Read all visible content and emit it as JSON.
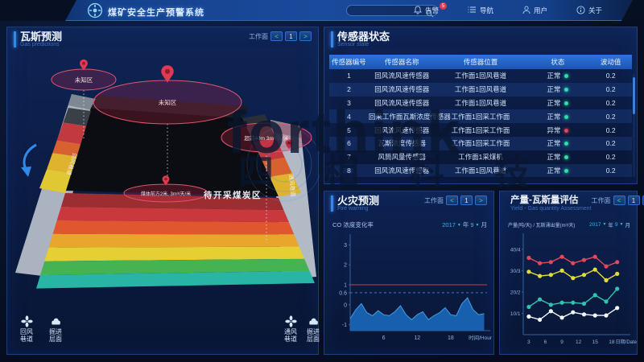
{
  "header": {
    "title": "煤矿安全生产预警系统",
    "search": {
      "placeholder": "",
      "icon": "search-icon"
    },
    "nav": [
      {
        "id": "alarm",
        "icon": "bell-icon",
        "label": "告警",
        "badge": "5"
      },
      {
        "id": "navigate",
        "icon": "list-icon",
        "label": "导航",
        "badge": ""
      },
      {
        "id": "user",
        "icon": "user-icon",
        "label": "用户",
        "badge": ""
      },
      {
        "id": "about",
        "icon": "info-icon",
        "label": "关于",
        "badge": ""
      }
    ]
  },
  "gas_panel": {
    "title": "瓦斯预测",
    "subtitle": "Gas predictions",
    "pager": {
      "label": "工作面",
      "prev": "<",
      "page": "1",
      "next": ">"
    },
    "mine": {
      "zone1_label": "未知区",
      "zone2_label": "未知区",
      "advance_label": "超前40m 3m³/天/米",
      "front_label": "煤体前方2米, 3m³/天/米",
      "coal_area_label": "待开采煤炭区",
      "left_tunnel_label": "回风巷道",
      "right_tunnel_label": "通风巷道",
      "legend": [
        {
          "icon": "fan-icon",
          "line1": "回风",
          "line2": "巷道"
        },
        {
          "icon": "heap-icon",
          "line1": "掘进",
          "line2": "层面"
        },
        {
          "icon": "fan-icon",
          "line1": "通风",
          "line2": "巷道"
        },
        {
          "icon": "heap-icon",
          "line1": "掘进",
          "line2": "层面"
        }
      ]
    }
  },
  "sensor_panel": {
    "title": "传感器状态",
    "subtitle": "Sensor state",
    "columns": [
      "传感器编号",
      "传感器名称",
      "传感器位置",
      "状态",
      "波动值"
    ],
    "rows": [
      {
        "id": "1",
        "name": "回风流风速传感器",
        "location": "工作面1回风巷道",
        "status": "正常",
        "ok": true,
        "value": "0.2"
      },
      {
        "id": "2",
        "name": "回风流风速传感器",
        "location": "工作面1回风巷道",
        "status": "正常",
        "ok": true,
        "value": "0.2"
      },
      {
        "id": "3",
        "name": "回风流风速传感器",
        "location": "工作面1回风巷道",
        "status": "正常",
        "ok": true,
        "value": "0.2"
      },
      {
        "id": "4",
        "name": "回采工作面瓦斯浓度传感器",
        "location": "工作面1回采工作面",
        "status": "正常",
        "ok": true,
        "value": "0.2"
      },
      {
        "id": "5",
        "name": "回风流风速传感器",
        "location": "工作面1回采工作面",
        "status": "异常",
        "ok": false,
        "value": "0.2"
      },
      {
        "id": "6",
        "name": "瓦斯浓度传感器",
        "location": "工作面1回采工作面",
        "status": "正常",
        "ok": true,
        "value": "0.2"
      },
      {
        "id": "7",
        "name": "风筒风量传感器",
        "location": "工作面1采煤机",
        "status": "正常",
        "ok": true,
        "value": "0.2"
      },
      {
        "id": "8",
        "name": "回风流风速传感器",
        "location": "工作面1回风巷道",
        "status": "正常",
        "ok": true,
        "value": "0.2"
      }
    ]
  },
  "fire_panel": {
    "title": "火灾预测",
    "subtitle": "Fire warning",
    "pager": {
      "label": "工作面",
      "prev": "<",
      "page": "1",
      "next": ">"
    },
    "legend": "CO 浓度变化率",
    "date": {
      "year": "2017",
      "year_unit": "年",
      "month": "9",
      "month_unit": "月",
      "caret": "▼"
    }
  },
  "yield_panel": {
    "title": "产量-瓦斯量评估",
    "subtitle": "Yield - Gas quantity Assessment",
    "pager": {
      "label": "工作面",
      "prev": "<",
      "page": "1",
      "next": ">"
    },
    "legend": "产量(吨/天) / 瓦斯涌出量(m³/天)",
    "date": {
      "year": "2017",
      "year_unit": "年",
      "month": "9",
      "month_unit": "月",
      "caret": "▼"
    }
  },
  "watermark": {
    "latin": "forthink",
    "cn": "四相科技"
  },
  "chart_data": [
    {
      "type": "area",
      "title": "CO 浓度变化率",
      "xlabel": "时间/Hour",
      "x": [
        0,
        1,
        2,
        3,
        4,
        5,
        6,
        7,
        8,
        9,
        10,
        11,
        12,
        13,
        14,
        15,
        16,
        17,
        18,
        19,
        20,
        21,
        22,
        23,
        24
      ],
      "values": [
        -0.7,
        -0.25,
        0.05,
        -0.4,
        -0.55,
        -0.3,
        -0.5,
        -0.55,
        -0.35,
        -0.05,
        -0.5,
        -0.75,
        -0.5,
        -0.35,
        -0.75,
        -0.55,
        -0.4,
        -0.15,
        -0.5,
        -0.55,
        0.05,
        0.35,
        -0.25,
        -0.5,
        -0.45
      ],
      "thresholds": [
        {
          "value": 1,
          "color": "#cf3b4f",
          "style": "solid"
        },
        {
          "value": 0.6,
          "color": "#3f76c8",
          "style": "dashed"
        }
      ],
      "yticks": [
        3,
        2,
        1,
        0.6,
        0,
        -1
      ],
      "xticks": [
        6,
        12,
        18
      ],
      "ylim": [
        -1.3,
        3.3
      ],
      "xlim": [
        0,
        24.5
      ],
      "area_color": "#1a66b8",
      "line_color": "#3f9fe0",
      "grid": false,
      "legend_position": "top-left"
    },
    {
      "type": "line",
      "title": "产量(吨/天) / 瓦斯涌出量(m³/天)",
      "xlabel": "日期/Date",
      "x": [
        3,
        5,
        7,
        9,
        11,
        13,
        15,
        17,
        19
      ],
      "series": [
        {
          "name": "产量-红线",
          "color": "#e4475c",
          "values": [
            36,
            33.5,
            34,
            36.5,
            33.5,
            35,
            36.5,
            32,
            34
          ]
        },
        {
          "name": "产量-黄线",
          "color": "#e3da3c",
          "values": [
            29.5,
            27.5,
            28,
            30,
            26.5,
            28,
            30.5,
            25.5,
            28.5
          ]
        },
        {
          "name": "瓦斯涌出量-青线",
          "color": "#2fc4b2",
          "values": [
            13,
            16.5,
            14,
            15,
            15,
            14.5,
            18.5,
            15.5,
            21.5
          ]
        },
        {
          "name": "瓦斯涌出量-白线",
          "color": "#f4f8fc",
          "values": [
            8.5,
            7,
            11,
            8,
            10.5,
            9.5,
            9,
            9,
            12.5
          ]
        }
      ],
      "yticks": [
        "40/4",
        "30/3",
        "20/2",
        "10/1"
      ],
      "ytick_values": [
        40,
        30,
        20,
        10
      ],
      "xticks": [
        3,
        6,
        9,
        12,
        15,
        18
      ],
      "ylim": [
        0,
        46
      ],
      "xlim": [
        2,
        20.5
      ],
      "grid": false,
      "legend_position": "top-left"
    }
  ]
}
